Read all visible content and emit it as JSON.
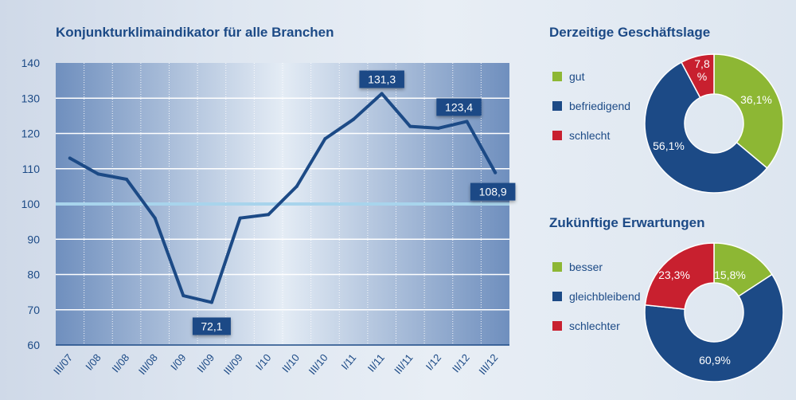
{
  "chart_data": [
    {
      "type": "line",
      "title": "Konjunkturklimaindikator für alle Branchen",
      "categories": [
        "III/07",
        "I/08",
        "II/08",
        "III/08",
        "I/09",
        "II/09",
        "III/09",
        "I/10",
        "II/10",
        "III/10",
        "I/11",
        "II/11",
        "III/11",
        "I/12",
        "II/12",
        "III/12"
      ],
      "series": [
        {
          "values": [
            113,
            108.5,
            107,
            96,
            74,
            72.1,
            96,
            97,
            105,
            118.5,
            124,
            131.3,
            122,
            121.5,
            123.4,
            108.9
          ]
        }
      ],
      "ylim": [
        60,
        140
      ],
      "yticks": [
        60,
        70,
        80,
        90,
        100,
        110,
        120,
        130,
        140
      ],
      "reference_line": 100,
      "annotations": [
        {
          "category": "II/09",
          "label": "72,1"
        },
        {
          "category": "II/11",
          "label": "131,3"
        },
        {
          "category": "II/12",
          "label": "123,4"
        },
        {
          "category": "III/12",
          "label": "108,9"
        }
      ],
      "colors": {
        "line": "#1c4a86",
        "reference": "#a8d4ec",
        "grid": "#ffffff"
      }
    },
    {
      "type": "pie",
      "title": "Derzeitige Geschäftslage",
      "donut": true,
      "labels": [
        "gut",
        "befriedigend",
        "schlecht"
      ],
      "values": [
        36.1,
        56.1,
        7.8
      ],
      "value_labels": [
        "36,1%",
        "56,1%",
        "7,8 %"
      ],
      "colors": [
        "#8db734",
        "#1c4a86",
        "#c8202f"
      ]
    },
    {
      "type": "pie",
      "title": "Zukünftige Erwartungen",
      "donut": true,
      "labels": [
        "besser",
        "gleichbleibend",
        "schlechter"
      ],
      "values": [
        15.8,
        60.9,
        23.3
      ],
      "value_labels": [
        "15,8%",
        "60,9%",
        "23,3%"
      ],
      "colors": [
        "#8db734",
        "#1c4a86",
        "#c8202f"
      ]
    }
  ]
}
